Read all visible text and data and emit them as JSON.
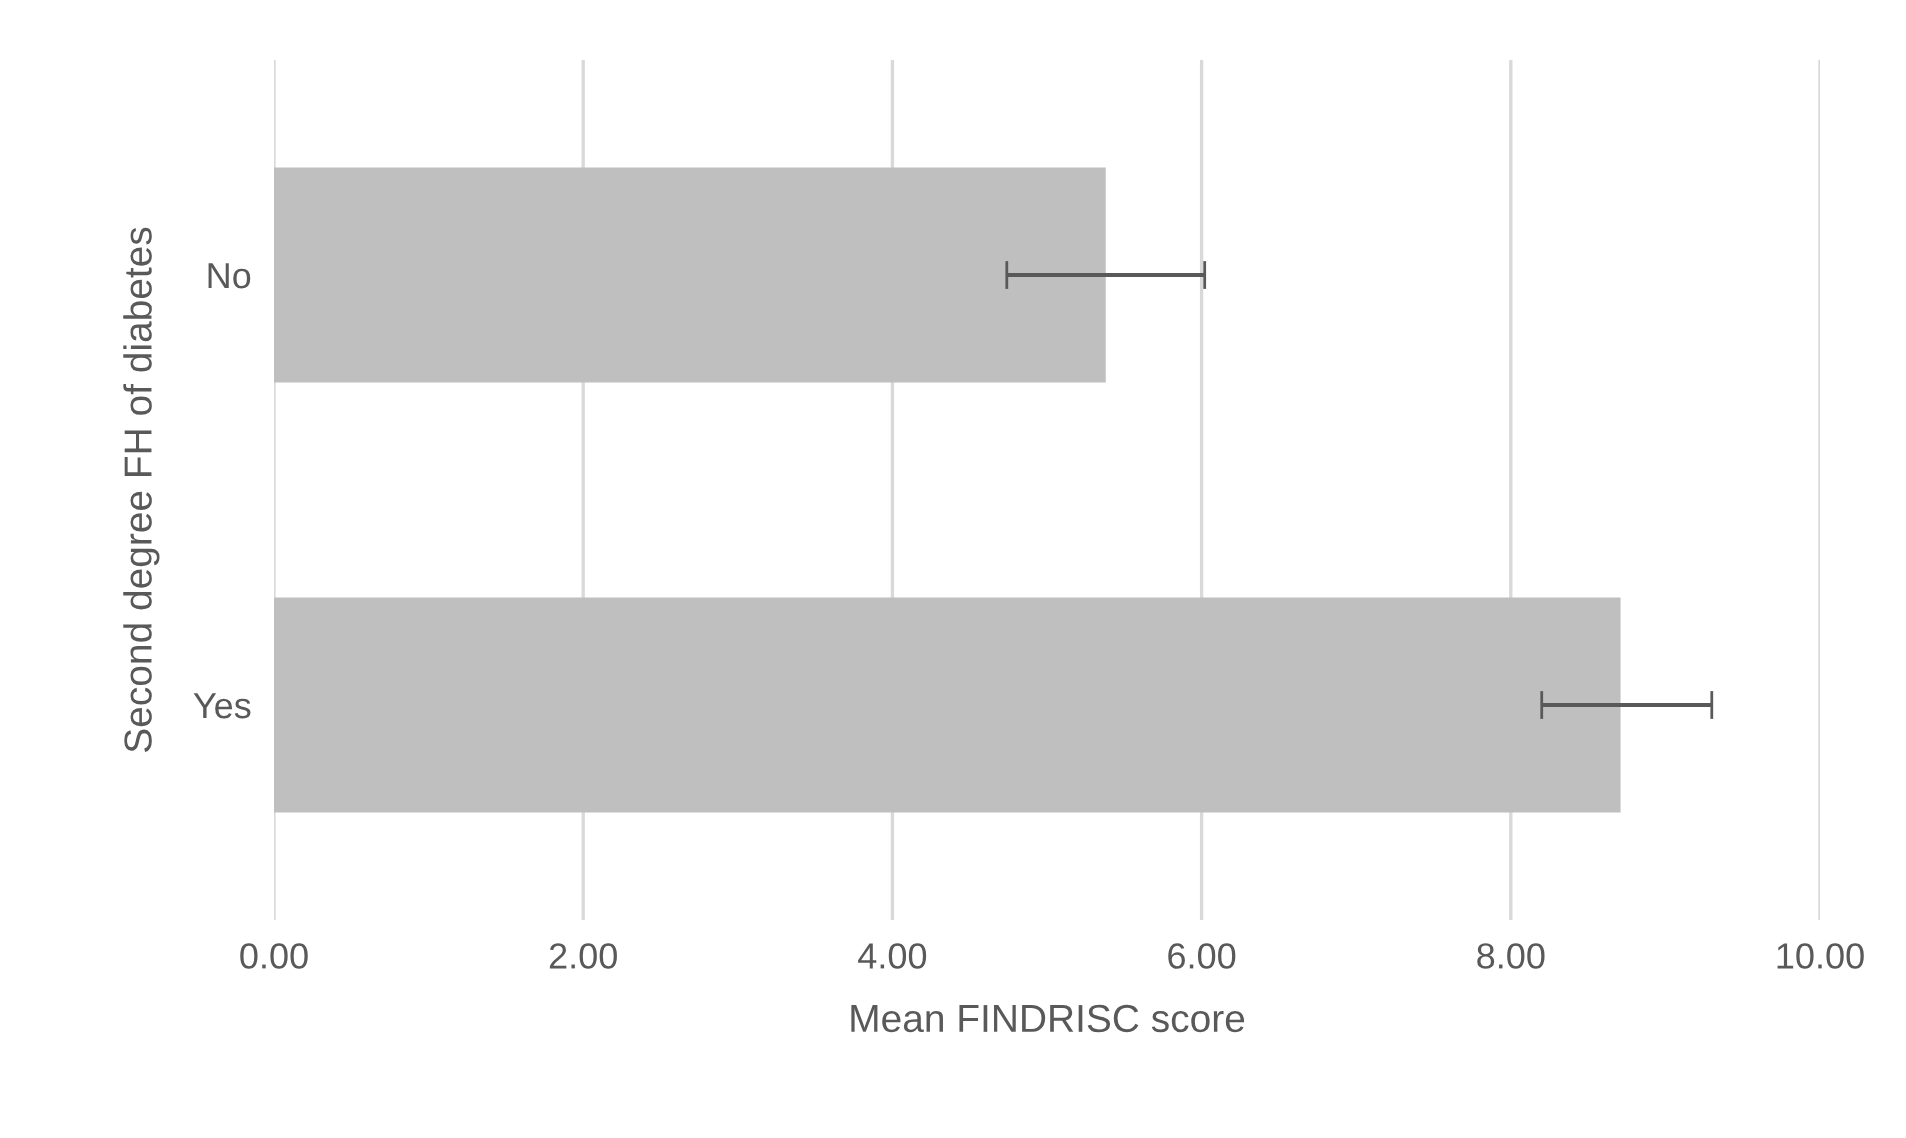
{
  "chart_data": {
    "type": "bar",
    "orientation": "horizontal",
    "categories": [
      "No",
      "Yes"
    ],
    "values": [
      5.38,
      8.71
    ],
    "errors": [
      [
        4.74,
        6.02
      ],
      [
        8.2,
        9.3
      ]
    ],
    "color": "#bfbfbf",
    "xlabel": "Mean FINDRISC score",
    "ylabel": "Second degree FH of diabetes",
    "xlim": [
      0,
      10
    ],
    "xticks": [
      {
        "value": 0,
        "label": "0.00"
      },
      {
        "value": 2,
        "label": "2.00"
      },
      {
        "value": 4,
        "label": "4.00"
      },
      {
        "value": 6,
        "label": "6.00"
      },
      {
        "value": 8,
        "label": "8.00"
      },
      {
        "value": 10,
        "label": "10.00"
      }
    ],
    "grid": "x"
  }
}
